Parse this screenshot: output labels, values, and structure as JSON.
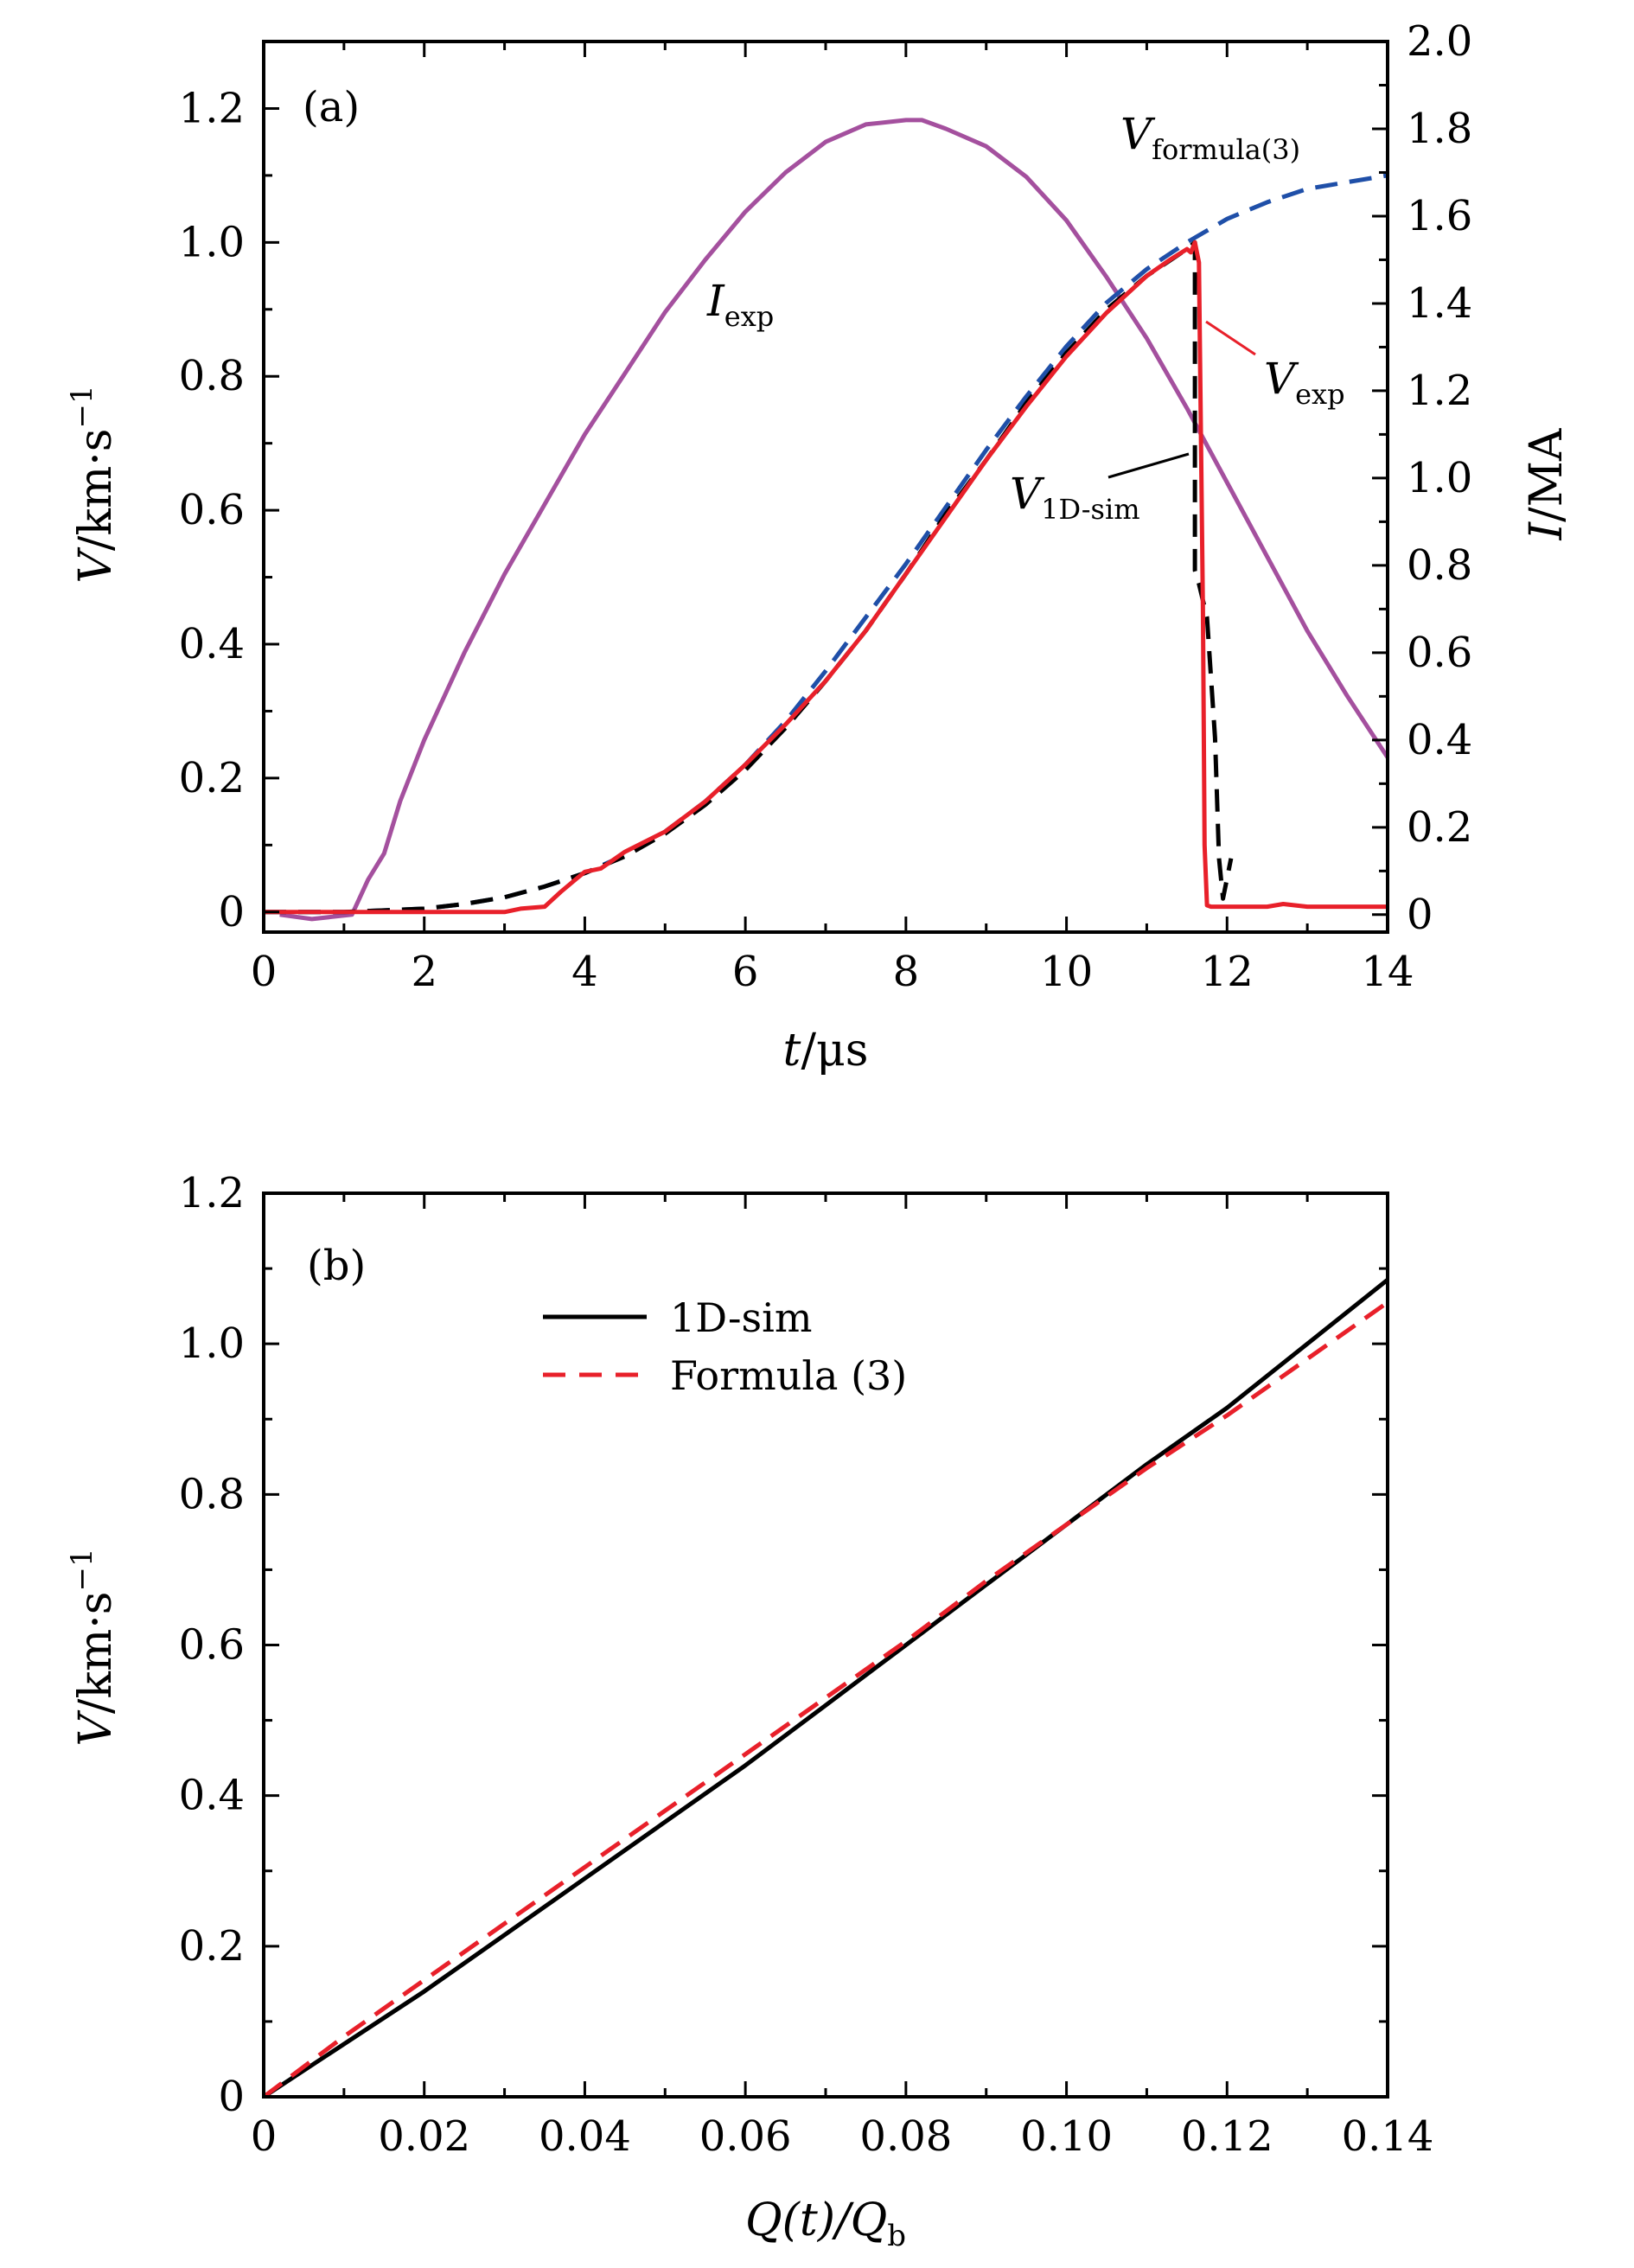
{
  "chart_data": [
    {
      "type": "line",
      "panel_tag": "(a)",
      "xlabel": {
        "var": "t",
        "unit": "/μs"
      },
      "ylabel_left": {
        "var": "V",
        "unit": "/km·s",
        "sup": "−1"
      },
      "ylabel_right": {
        "var": "I",
        "unit": "/MA"
      },
      "xlim": [
        0,
        14
      ],
      "ylim_left": [
        -0.03,
        1.3
      ],
      "ylim_right": [
        -0.04,
        2.0
      ],
      "x_ticks": [
        0,
        2,
        4,
        6,
        8,
        10,
        12,
        14
      ],
      "x_tick_labels": [
        "0",
        "2",
        "4",
        "6",
        "8",
        "10",
        "12",
        "14"
      ],
      "y_left_ticks": [
        0,
        0.2,
        0.4,
        0.6,
        0.8,
        1.0,
        1.2
      ],
      "y_left_tick_labels": [
        "0",
        "0.2",
        "0.4",
        "0.6",
        "0.8",
        "1.0",
        "1.2"
      ],
      "y_right_ticks": [
        0,
        0.2,
        0.4,
        0.6,
        0.8,
        1.0,
        1.2,
        1.4,
        1.6,
        1.8,
        2.0
      ],
      "y_right_tick_labels": [
        "0",
        "0.2",
        "0.4",
        "0.6",
        "0.8",
        "1.0",
        "1.2",
        "1.4",
        "1.6",
        "1.8",
        "2.0"
      ],
      "legend": "none",
      "series": [
        {
          "key": "I_exp",
          "axis": "right",
          "color": "#A4509E",
          "dash": "solid",
          "x": [
            0.2,
            0.6,
            1.1,
            1.3,
            1.5,
            1.7,
            2.0,
            2.5,
            3.0,
            3.5,
            4.0,
            4.5,
            5.0,
            5.5,
            6.0,
            6.5,
            7.0,
            7.5,
            8.0,
            8.2,
            8.5,
            9.0,
            9.5,
            10.0,
            10.5,
            11.0,
            11.5,
            12.0,
            12.5,
            13.0,
            13.5,
            14.0
          ],
          "y": [
            0.0,
            -0.01,
            0.0,
            0.08,
            0.14,
            0.26,
            0.4,
            0.6,
            0.78,
            0.94,
            1.1,
            1.24,
            1.38,
            1.5,
            1.61,
            1.7,
            1.77,
            1.81,
            1.82,
            1.82,
            1.8,
            1.76,
            1.69,
            1.59,
            1.46,
            1.32,
            1.16,
            0.99,
            0.82,
            0.65,
            0.5,
            0.36
          ]
        },
        {
          "key": "V_formula",
          "axis": "left",
          "color": "#1F4FA8",
          "dash": "dashed",
          "x": [
            0.0,
            1.0,
            2.0,
            2.5,
            3.0,
            3.5,
            4.0,
            4.5,
            5.0,
            5.5,
            6.0,
            6.5,
            7.0,
            7.5,
            8.0,
            8.5,
            9.0,
            9.5,
            10.0,
            10.5,
            11.0,
            11.5,
            12.0,
            12.5,
            13.0,
            13.5,
            14.0
          ],
          "y": [
            0.0,
            0.0,
            0.005,
            0.012,
            0.022,
            0.038,
            0.058,
            0.085,
            0.12,
            0.165,
            0.22,
            0.285,
            0.36,
            0.44,
            0.52,
            0.605,
            0.69,
            0.77,
            0.845,
            0.91,
            0.96,
            1.0,
            1.035,
            1.06,
            1.08,
            1.09,
            1.1
          ]
        },
        {
          "key": "V_1D_sim",
          "axis": "left",
          "color": "#000000",
          "dash": "dashed",
          "x": [
            0.0,
            1.0,
            2.0,
            2.5,
            3.0,
            3.5,
            4.0,
            4.5,
            5.0,
            5.5,
            6.0,
            6.5,
            7.0,
            7.5,
            8.0,
            8.5,
            9.0,
            9.5,
            10.0,
            10.5,
            11.0,
            11.5,
            11.6,
            11.6,
            11.65,
            11.75,
            11.85,
            11.9,
            11.95,
            12.05
          ],
          "y": [
            0.0,
            0.0,
            0.005,
            0.012,
            0.022,
            0.038,
            0.058,
            0.083,
            0.117,
            0.16,
            0.212,
            0.275,
            0.345,
            0.42,
            0.505,
            0.595,
            0.675,
            0.76,
            0.835,
            0.9,
            0.95,
            0.99,
            1.0,
            0.51,
            0.49,
            0.44,
            0.26,
            0.08,
            0.02,
            0.08
          ]
        },
        {
          "key": "V_exp",
          "axis": "left",
          "color": "#E8202A",
          "dash": "solid",
          "x": [
            0.0,
            1.0,
            2.0,
            2.5,
            3.0,
            3.2,
            3.5,
            3.7,
            3.9,
            4.0,
            4.2,
            4.5,
            5.0,
            5.5,
            6.0,
            6.5,
            7.0,
            7.5,
            8.0,
            8.5,
            9.0,
            9.5,
            10.0,
            10.5,
            11.0,
            11.3,
            11.5,
            11.55,
            11.6,
            11.65,
            11.7,
            11.72,
            11.75,
            11.8,
            12.0,
            12.5,
            12.7,
            13.0,
            13.5,
            14.0
          ],
          "y": [
            0.0,
            0.0,
            0.0,
            0.0,
            0.0,
            0.005,
            0.008,
            0.03,
            0.05,
            0.06,
            0.065,
            0.09,
            0.12,
            0.165,
            0.22,
            0.28,
            0.345,
            0.42,
            0.505,
            0.59,
            0.675,
            0.755,
            0.83,
            0.895,
            0.95,
            0.975,
            0.99,
            0.985,
            1.0,
            0.97,
            0.45,
            0.1,
            0.01,
            0.008,
            0.008,
            0.008,
            0.012,
            0.008,
            0.008,
            0.008
          ]
        }
      ],
      "annotations": [
        {
          "key": "I_exp",
          "var": "I",
          "sub": "exp"
        },
        {
          "key": "V_formula",
          "var": "V",
          "sub": "formula(3)"
        },
        {
          "key": "V_exp",
          "var": "V",
          "sub": "exp"
        },
        {
          "key": "V_1D_sim",
          "var": "V",
          "sub": "1D-sim"
        }
      ]
    },
    {
      "type": "line",
      "panel_tag": "(b)",
      "xlabel": {
        "text": "Q(t)/Q",
        "sub": "b"
      },
      "ylabel_left": {
        "var": "V",
        "unit": "/km·s",
        "sup": "−1"
      },
      "xlim": [
        0,
        0.14
      ],
      "ylim": [
        0,
        1.2
      ],
      "x_ticks": [
        0,
        0.02,
        0.04,
        0.06,
        0.08,
        0.1,
        0.12,
        0.14
      ],
      "x_tick_labels": [
        "0",
        "0.02",
        "0.04",
        "0.06",
        "0.08",
        "0.10",
        "0.12",
        "0.14"
      ],
      "y_ticks": [
        0,
        0.2,
        0.4,
        0.6,
        0.8,
        1.0,
        1.2
      ],
      "y_tick_labels": [
        "0",
        "0.2",
        "0.4",
        "0.6",
        "0.8",
        "1.0",
        "1.2"
      ],
      "legend": "upper-left",
      "series": [
        {
          "name": "1D-sim",
          "color": "#000000",
          "dash": "solid",
          "x": [
            0.0,
            0.01,
            0.02,
            0.03,
            0.04,
            0.05,
            0.06,
            0.07,
            0.08,
            0.09,
            0.1,
            0.11,
            0.12,
            0.13,
            0.14
          ],
          "y": [
            0.0,
            0.07,
            0.14,
            0.215,
            0.29,
            0.365,
            0.44,
            0.52,
            0.6,
            0.68,
            0.76,
            0.84,
            0.915,
            1.0,
            1.085
          ]
        },
        {
          "name": "Formula (3)",
          "color": "#E8202A",
          "dash": "dashed",
          "x": [
            0.0,
            0.01,
            0.02,
            0.03,
            0.04,
            0.05,
            0.06,
            0.07,
            0.08,
            0.09,
            0.1,
            0.11,
            0.12,
            0.13,
            0.14
          ],
          "y": [
            0.0,
            0.08,
            0.155,
            0.23,
            0.305,
            0.38,
            0.455,
            0.53,
            0.605,
            0.685,
            0.76,
            0.835,
            0.905,
            0.98,
            1.055
          ]
        }
      ]
    }
  ]
}
